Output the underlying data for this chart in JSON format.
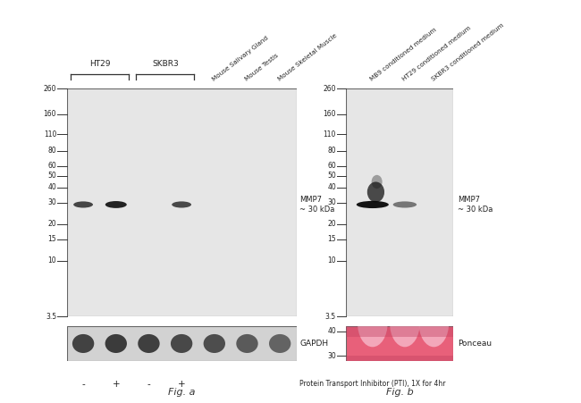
{
  "fig_width": 6.5,
  "fig_height": 4.51,
  "bg_color": "#ffffff",
  "panel_a": {
    "mw_markers": [
      260,
      160,
      110,
      80,
      60,
      50,
      40,
      30,
      20,
      15,
      10,
      3.5
    ],
    "mmp7_label": "MMP7\n~ 30 kDa",
    "gapdh_label": "GAPDH",
    "pti_label": "Protein Transport Inhibitor (PTI), 1X for 4hr",
    "fig_label": "Fig. a",
    "lane_labels_bottom": [
      "-",
      "+",
      "-",
      "+"
    ],
    "wb_bg": "#e6e6e6",
    "gapdh_bg": "#d2d2d2"
  },
  "panel_b": {
    "mw_markers": [
      260,
      160,
      110,
      80,
      60,
      50,
      40,
      30,
      20,
      15,
      10,
      3.5
    ],
    "ponceau_markers": [
      40,
      30
    ],
    "lane_labels": [
      "MB9 conditioned medium",
      "HT29 conditioned medium",
      "SKBR3 conditioned medium"
    ],
    "mmp7_label": "MMP7\n~ 30 kDa",
    "ponceau_label": "Ponceau",
    "fig_label": "Fig. b",
    "wb_bg": "#e6e6e6"
  }
}
